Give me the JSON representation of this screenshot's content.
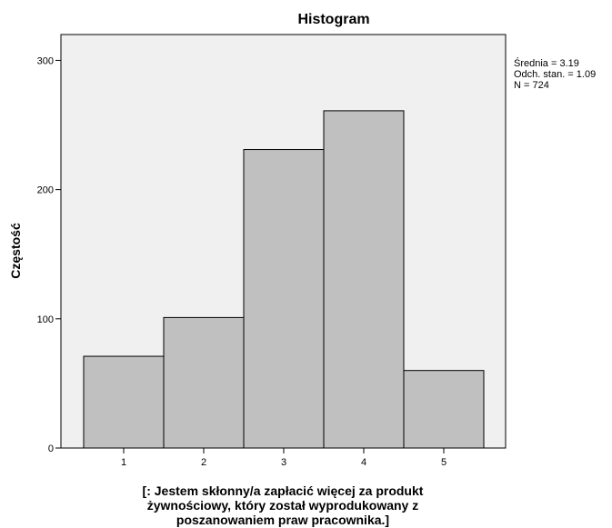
{
  "chart_data": {
    "type": "bar",
    "title": "Histogram",
    "ylabel": "Częstość",
    "xlabel_lines": [
      "[: Jestem skłonny/a zapłacić więcej za produkt",
      "żywnościowy, który został wyprodukowany z",
      "poszanowaniem praw pracownika.]"
    ],
    "categories": [
      "1",
      "2",
      "3",
      "4",
      "5"
    ],
    "values": [
      71,
      101,
      231,
      261,
      60
    ],
    "ylim": [
      0,
      320
    ],
    "yticks": [
      "0",
      "100",
      "200",
      "300"
    ],
    "ytick_values": [
      0,
      100,
      200,
      300
    ],
    "stats": [
      "Średnia = 3.19",
      "Odch. stan. = 1.09",
      "N = 724"
    ],
    "grid": false,
    "bar_color": "#c0c0c0",
    "plot_background": "#f0f0f0"
  }
}
